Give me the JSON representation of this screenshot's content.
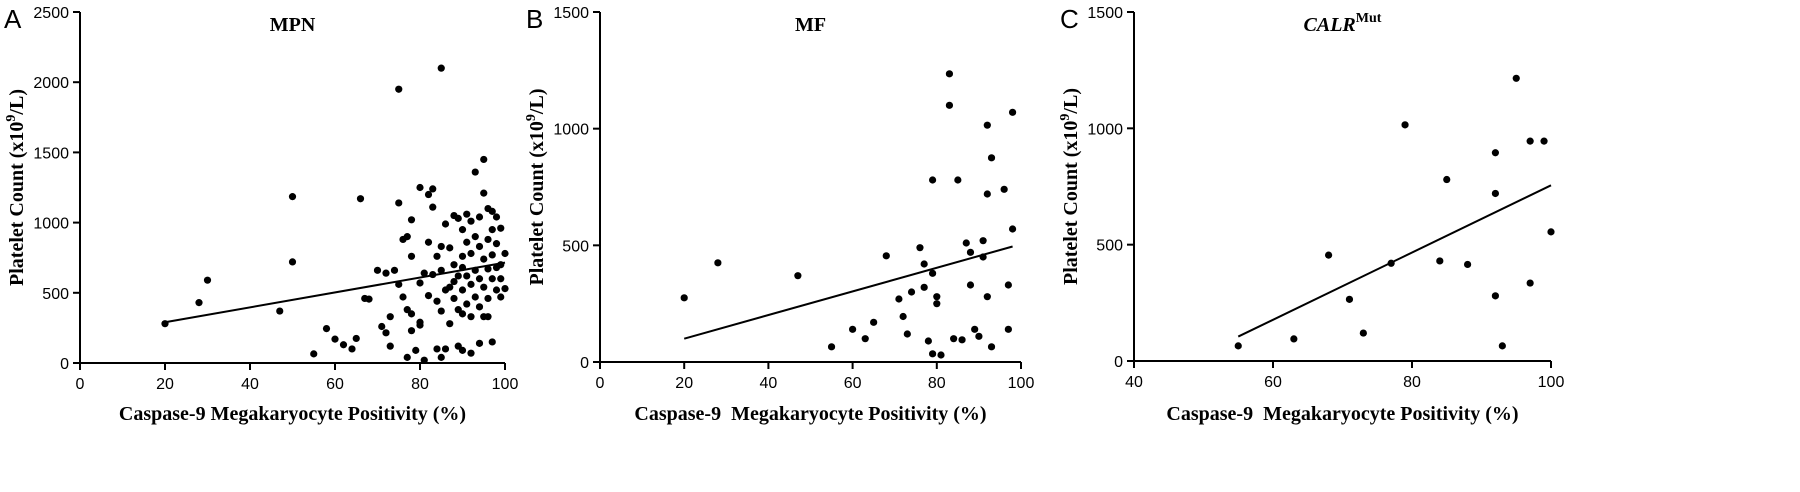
{
  "chart_data": [
    {
      "type": "scatter",
      "panel_label": "A",
      "title": "MPN",
      "title_italic": false,
      "title_main": "MPN",
      "title_sup": "",
      "xlabel": "Caspase-9 Megakaryocyte Positivity (%)",
      "ylabel_main": "Platelet Count (x10",
      "ylabel_sup": "9",
      "ylabel_tail": "/L)",
      "xlim": [
        0,
        100
      ],
      "ylim": [
        0,
        2500
      ],
      "xticks": [
        0,
        20,
        40,
        60,
        80,
        100
      ],
      "yticks": [
        0,
        500,
        1000,
        1500,
        2000,
        2500
      ],
      "trendline": [
        [
          20,
          290
        ],
        [
          100,
          715
        ]
      ],
      "points": [
        [
          20,
          280
        ],
        [
          28,
          430
        ],
        [
          30,
          590
        ],
        [
          47,
          370
        ],
        [
          50,
          1185
        ],
        [
          50,
          720
        ],
        [
          55,
          65
        ],
        [
          58,
          245
        ],
        [
          60,
          170
        ],
        [
          62,
          130
        ],
        [
          64,
          100
        ],
        [
          65,
          175
        ],
        [
          66,
          1170
        ],
        [
          67,
          460
        ],
        [
          68,
          455
        ],
        [
          70,
          660
        ],
        [
          71,
          260
        ],
        [
          72,
          215
        ],
        [
          72,
          640
        ],
        [
          73,
          330
        ],
        [
          73,
          120
        ],
        [
          74,
          660
        ],
        [
          75,
          1950
        ],
        [
          75,
          1140
        ],
        [
          75,
          560
        ],
        [
          76,
          470
        ],
        [
          76,
          880
        ],
        [
          77,
          900
        ],
        [
          77,
          380
        ],
        [
          77,
          40
        ],
        [
          78,
          1020
        ],
        [
          78,
          760
        ],
        [
          78,
          230
        ],
        [
          78,
          350
        ],
        [
          79,
          90
        ],
        [
          80,
          1250
        ],
        [
          80,
          570
        ],
        [
          80,
          270
        ],
        [
          80,
          290
        ],
        [
          81,
          640
        ],
        [
          81,
          20
        ],
        [
          82,
          860
        ],
        [
          82,
          1200
        ],
        [
          82,
          480
        ],
        [
          83,
          1240
        ],
        [
          83,
          1110
        ],
        [
          83,
          630
        ],
        [
          84,
          760
        ],
        [
          84,
          440
        ],
        [
          84,
          100
        ],
        [
          85,
          2100
        ],
        [
          85,
          830
        ],
        [
          85,
          660
        ],
        [
          85,
          370
        ],
        [
          85,
          40
        ],
        [
          86,
          990
        ],
        [
          86,
          520
        ],
        [
          86,
          100
        ],
        [
          87,
          820
        ],
        [
          87,
          540
        ],
        [
          87,
          280
        ],
        [
          88,
          1050
        ],
        [
          88,
          700
        ],
        [
          88,
          580
        ],
        [
          88,
          460
        ],
        [
          89,
          1030
        ],
        [
          89,
          620
        ],
        [
          89,
          380
        ],
        [
          89,
          120
        ],
        [
          90,
          950
        ],
        [
          90,
          760
        ],
        [
          90,
          680
        ],
        [
          90,
          520
        ],
        [
          90,
          350
        ],
        [
          90,
          90
        ],
        [
          91,
          1060
        ],
        [
          91,
          860
        ],
        [
          91,
          620
        ],
        [
          91,
          420
        ],
        [
          92,
          1010
        ],
        [
          92,
          780
        ],
        [
          92,
          560
        ],
        [
          92,
          330
        ],
        [
          92,
          70
        ],
        [
          93,
          1360
        ],
        [
          93,
          900
        ],
        [
          93,
          660
        ],
        [
          93,
          470
        ],
        [
          94,
          1040
        ],
        [
          94,
          830
        ],
        [
          94,
          600
        ],
        [
          94,
          400
        ],
        [
          94,
          140
        ],
        [
          95,
          1450
        ],
        [
          95,
          1210
        ],
        [
          95,
          740
        ],
        [
          95,
          540
        ],
        [
          95,
          330
        ],
        [
          96,
          1100
        ],
        [
          96,
          880
        ],
        [
          96,
          670
        ],
        [
          96,
          460
        ],
        [
          96,
          330
        ],
        [
          97,
          1080
        ],
        [
          97,
          950
        ],
        [
          97,
          770
        ],
        [
          97,
          600
        ],
        [
          97,
          150
        ],
        [
          98,
          1040
        ],
        [
          98,
          850
        ],
        [
          98,
          680
        ],
        [
          98,
          520
        ],
        [
          99,
          960
        ],
        [
          99,
          700
        ],
        [
          99,
          600
        ],
        [
          99,
          470
        ],
        [
          100,
          780
        ],
        [
          100,
          530
        ]
      ]
    },
    {
      "type": "scatter",
      "panel_label": "B",
      "title": "MF",
      "title_italic": false,
      "title_main": "MF",
      "title_sup": "",
      "xlabel": "Caspase-9  Megakaryocyte Positivity (%)",
      "ylabel_main": "Platelet Count (x10",
      "ylabel_sup": "9",
      "ylabel_tail": "/L)",
      "xlim": [
        0,
        100
      ],
      "ylim": [
        0,
        1500
      ],
      "xticks": [
        0,
        20,
        40,
        60,
        80,
        100
      ],
      "yticks": [
        0,
        500,
        1000,
        1500
      ],
      "trendline": [
        [
          20,
          100
        ],
        [
          98,
          495
        ]
      ],
      "points": [
        [
          20,
          275
        ],
        [
          28,
          425
        ],
        [
          47,
          370
        ],
        [
          55,
          65
        ],
        [
          60,
          140
        ],
        [
          63,
          100
        ],
        [
          65,
          170
        ],
        [
          68,
          455
        ],
        [
          71,
          270
        ],
        [
          72,
          195
        ],
        [
          73,
          120
        ],
        [
          74,
          300
        ],
        [
          76,
          490
        ],
        [
          77,
          420
        ],
        [
          77,
          320
        ],
        [
          78,
          90
        ],
        [
          79,
          380
        ],
        [
          79,
          780
        ],
        [
          79,
          35
        ],
        [
          80,
          250
        ],
        [
          80,
          280
        ],
        [
          81,
          30
        ],
        [
          83,
          1235
        ],
        [
          83,
          1100
        ],
        [
          84,
          100
        ],
        [
          85,
          780
        ],
        [
          86,
          95
        ],
        [
          87,
          510
        ],
        [
          88,
          330
        ],
        [
          88,
          470
        ],
        [
          89,
          140
        ],
        [
          90,
          110
        ],
        [
          91,
          520
        ],
        [
          91,
          450
        ],
        [
          92,
          1015
        ],
        [
          92,
          720
        ],
        [
          92,
          280
        ],
        [
          93,
          875
        ],
        [
          93,
          65
        ],
        [
          96,
          740
        ],
        [
          97,
          330
        ],
        [
          97,
          140
        ],
        [
          98,
          1070
        ],
        [
          98,
          570
        ]
      ]
    },
    {
      "type": "scatter",
      "panel_label": "C",
      "title": "CALRMut",
      "title_italic": true,
      "title_main": "CALR",
      "title_sup": "Mut",
      "xlabel": "Caspase-9  Megakaryocyte Positivity (%)",
      "ylabel_main": "Platelet Count (x10",
      "ylabel_sup": "9",
      "ylabel_tail": "/L)",
      "xlim": [
        40,
        100
      ],
      "ylim": [
        0,
        1500
      ],
      "xticks": [
        40,
        60,
        80,
        100
      ],
      "yticks": [
        0,
        500,
        1000,
        1500
      ],
      "trendline": [
        [
          55,
          105
        ],
        [
          100,
          755
        ]
      ],
      "points": [
        [
          55,
          65
        ],
        [
          63,
          95
        ],
        [
          68,
          455
        ],
        [
          71,
          265
        ],
        [
          73,
          120
        ],
        [
          77,
          420
        ],
        [
          79,
          1015
        ],
        [
          84,
          430
        ],
        [
          85,
          780
        ],
        [
          88,
          415
        ],
        [
          92,
          895
        ],
        [
          92,
          720
        ],
        [
          92,
          280
        ],
        [
          93,
          65
        ],
        [
          95,
          1215
        ],
        [
          97,
          945
        ],
        [
          97,
          335
        ],
        [
          99,
          945
        ],
        [
          100,
          555
        ]
      ]
    }
  ]
}
